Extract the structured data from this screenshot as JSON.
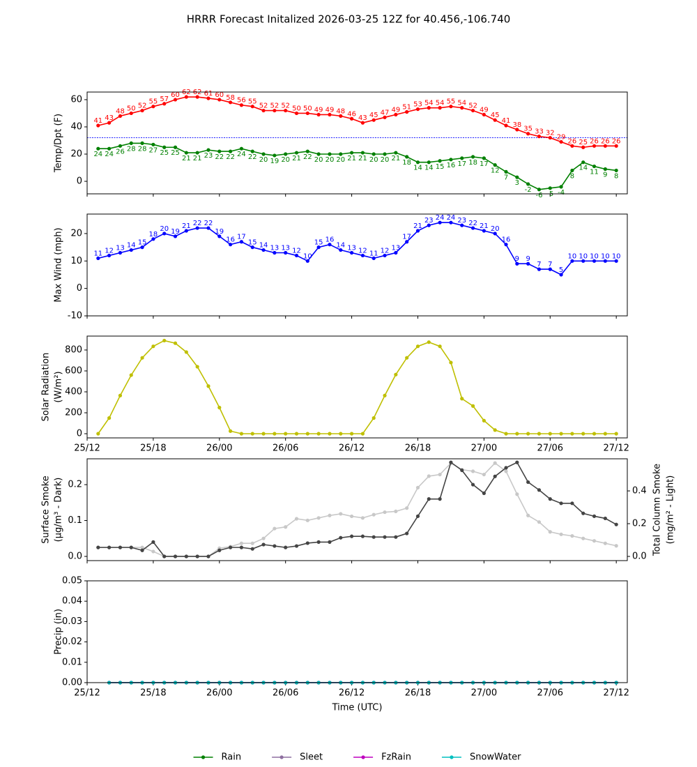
{
  "title": "HRRR Forecast Initalized 2026-03-25 12Z for 40.456,-106.740",
  "chart_data": [
    {
      "type": "line",
      "ylabel": [
        "Temp/Dpt (F)"
      ],
      "x": [
        1,
        2,
        3,
        4,
        5,
        6,
        7,
        8,
        9,
        10,
        11,
        12,
        13,
        14,
        15,
        16,
        17,
        18,
        19,
        20,
        21,
        22,
        23,
        24,
        25,
        26,
        27,
        28,
        29,
        30,
        31,
        32,
        33,
        34,
        35,
        36,
        37,
        38,
        39,
        40,
        41,
        42,
        43,
        44,
        45,
        46,
        47,
        48
      ],
      "xlim": [
        0,
        49
      ],
      "xticks": [
        0,
        6,
        12,
        18,
        24,
        30,
        36,
        42,
        48
      ],
      "ylim": [
        -9.2,
        65.6
      ],
      "yticks": [
        0,
        20,
        40,
        60
      ],
      "hline": 32,
      "hline_color": "#0000ff",
      "series": [
        {
          "color": "#ff0000",
          "data_labels": "above",
          "values": [
            41,
            43,
            48,
            50,
            52,
            55,
            57,
            60,
            62,
            62,
            61,
            60,
            58,
            56,
            55,
            52,
            52,
            52,
            50,
            50,
            49,
            49,
            48,
            46,
            43,
            45,
            47,
            49,
            51,
            53,
            54,
            54,
            55,
            54,
            52,
            49,
            45,
            41,
            38,
            35,
            33,
            32,
            29,
            26,
            25,
            26,
            26,
            26
          ]
        },
        {
          "color": "#008000",
          "data_labels": "below",
          "values": [
            24,
            24,
            26,
            28,
            28,
            27,
            25,
            25,
            21,
            21,
            23,
            22,
            22,
            24,
            22,
            20,
            19,
            20,
            21,
            22,
            20,
            20,
            20,
            21,
            21,
            20,
            20,
            21,
            18,
            14,
            14,
            15,
            16,
            17,
            18,
            17,
            12,
            7,
            3,
            -2,
            -6,
            -5,
            -4,
            8,
            14,
            11,
            9,
            8
          ]
        }
      ]
    },
    {
      "type": "line",
      "ylabel": [
        "Max Wind (mph)"
      ],
      "x": [
        1,
        2,
        3,
        4,
        5,
        6,
        7,
        8,
        9,
        10,
        11,
        12,
        13,
        14,
        15,
        16,
        17,
        18,
        19,
        20,
        21,
        22,
        23,
        24,
        25,
        26,
        27,
        28,
        29,
        30,
        31,
        32,
        33,
        34,
        35,
        36,
        37,
        38,
        39,
        40,
        41,
        42,
        43,
        44,
        45,
        46,
        47,
        48
      ],
      "xlim": [
        0,
        49
      ],
      "xticks": [
        0,
        6,
        12,
        18,
        24,
        30,
        36,
        42,
        48
      ],
      "ylim": [
        -10,
        27.1
      ],
      "yticks": [
        -10,
        0,
        10,
        20
      ],
      "series": [
        {
          "color": "#0000ff",
          "data_labels": "above",
          "values": [
            11,
            12,
            13,
            14,
            15,
            18,
            20,
            19,
            21,
            22,
            22,
            19,
            16,
            17,
            15,
            14,
            13,
            13,
            12,
            10,
            15,
            16,
            14,
            13,
            12,
            11,
            12,
            13,
            17,
            21,
            23,
            24,
            24,
            23,
            22,
            21,
            20,
            16,
            9,
            9,
            7,
            7,
            5,
            10,
            10,
            10,
            10,
            10
          ]
        }
      ]
    },
    {
      "type": "line",
      "ylabel": [
        "Solar Radiation",
        "(W/m²)"
      ],
      "x": [
        1,
        2,
        3,
        4,
        5,
        6,
        7,
        8,
        9,
        10,
        11,
        12,
        13,
        14,
        15,
        16,
        17,
        18,
        19,
        20,
        21,
        22,
        23,
        24,
        25,
        26,
        27,
        28,
        29,
        30,
        31,
        32,
        33,
        34,
        35,
        36,
        37,
        38,
        39,
        40,
        41,
        42,
        43,
        44,
        45,
        46,
        47,
        48
      ],
      "xlim": [
        0,
        49
      ],
      "xticks": [
        {
          "value": 0,
          "label": "25/12"
        },
        {
          "value": 6,
          "label": "25/18"
        },
        {
          "value": 12,
          "label": "26/00"
        },
        {
          "value": 18,
          "label": "26/06"
        },
        {
          "value": 24,
          "label": "26/12"
        },
        {
          "value": 30,
          "label": "26/18"
        },
        {
          "value": 36,
          "label": "27/00"
        },
        {
          "value": 42,
          "label": "27/06"
        },
        {
          "value": 48,
          "label": "27/12"
        }
      ],
      "ylim": [
        -40,
        933
      ],
      "yticks": [
        0,
        200,
        400,
        600,
        800
      ],
      "series": [
        {
          "color": "#bfbf00",
          "values": [
            0,
            150,
            365,
            560,
            725,
            835,
            890,
            865,
            780,
            640,
            455,
            250,
            25,
            0,
            0,
            0,
            0,
            0,
            0,
            0,
            0,
            0,
            0,
            0,
            0,
            150,
            365,
            565,
            725,
            835,
            875,
            835,
            680,
            335,
            265,
            125,
            35,
            0,
            0,
            0,
            0,
            0,
            0,
            0,
            0,
            0,
            0,
            0
          ]
        }
      ]
    },
    {
      "type": "line",
      "ylabel": [
        "Surface Smoke",
        "(μg/m³ - Dark)"
      ],
      "y2label": [
        "Total Column Smoke",
        "(mg/m² - Light)"
      ],
      "x": [
        1,
        2,
        3,
        4,
        5,
        6,
        7,
        8,
        9,
        10,
        11,
        12,
        13,
        14,
        15,
        16,
        17,
        18,
        19,
        20,
        21,
        22,
        23,
        24,
        25,
        26,
        27,
        28,
        29,
        30,
        31,
        32,
        33,
        34,
        35,
        36,
        37,
        38,
        39,
        40,
        41,
        42,
        43,
        44,
        45,
        46,
        47,
        48
      ],
      "xlim": [
        0,
        49
      ],
      "xticks": [
        0,
        6,
        12,
        18,
        24,
        30,
        36,
        42,
        48
      ],
      "ylim": [
        -0.0117,
        0.272
      ],
      "yticks": [
        {
          "value": 0,
          "label": "0.0"
        },
        {
          "value": 0.1,
          "label": "0.1"
        },
        {
          "value": 0.2,
          "label": "0.2"
        }
      ],
      "y2lim": [
        -0.0255,
        0.596
      ],
      "y2ticks": [
        {
          "value": 0,
          "label": "0.0"
        },
        {
          "value": 0.2,
          "label": "0.2"
        },
        {
          "value": 0.4,
          "label": "0.4"
        }
      ],
      "series": [
        {
          "color": "#c8c8c8",
          "axis": "y2",
          "values": [
            0.055,
            0.055,
            0.055,
            0.055,
            0.055,
            0.03,
            0,
            0,
            0,
            0,
            0,
            0.05,
            0.06,
            0.08,
            0.08,
            0.11,
            0.17,
            0.18,
            0.23,
            0.22,
            0.235,
            0.25,
            0.26,
            0.245,
            0.235,
            0.255,
            0.27,
            0.275,
            0.295,
            0.42,
            0.49,
            0.5,
            0.57,
            0.53,
            0.52,
            0.5,
            0.57,
            0.52,
            0.38,
            0.25,
            0.21,
            0.15,
            0.135,
            0.125,
            0.11,
            0.095,
            0.08,
            0.065
          ]
        },
        {
          "color": "#444444",
          "values": [
            0.025,
            0.025,
            0.025,
            0.025,
            0.017,
            0.04,
            0,
            0,
            0,
            0,
            0,
            0.017,
            0.025,
            0.025,
            0.021,
            0.033,
            0.029,
            0.025,
            0.029,
            0.037,
            0.04,
            0.04,
            0.052,
            0.056,
            0.056,
            0.054,
            0.054,
            0.054,
            0.064,
            0.112,
            0.16,
            0.16,
            0.262,
            0.24,
            0.2,
            0.176,
            0.223,
            0.247,
            0.262,
            0.207,
            0.185,
            0.16,
            0.148,
            0.148,
            0.12,
            0.112,
            0.106,
            0.089
          ]
        }
      ]
    },
    {
      "type": "line",
      "ylabel": [
        "Precip (in)"
      ],
      "xlabel": "Time (UTC)",
      "legend": "lower center",
      "x": [
        2,
        3,
        4,
        5,
        6,
        7,
        8,
        9,
        10,
        11,
        12,
        13,
        14,
        15,
        16,
        17,
        18,
        19,
        20,
        21,
        22,
        23,
        24,
        25,
        26,
        27,
        28,
        29,
        30,
        31,
        32,
        33,
        34,
        35,
        36,
        37,
        38,
        39,
        40,
        41,
        42,
        43,
        44,
        45,
        46,
        47,
        48
      ],
      "xlim": [
        0,
        49
      ],
      "xticks": [
        {
          "value": 0,
          "label": "25/12"
        },
        {
          "value": 6,
          "label": "25/18"
        },
        {
          "value": 12,
          "label": "26/00"
        },
        {
          "value": 18,
          "label": "26/06"
        },
        {
          "value": 24,
          "label": "26/12"
        },
        {
          "value": 30,
          "label": "26/18"
        },
        {
          "value": 36,
          "label": "27/00"
        },
        {
          "value": 42,
          "label": "27/06"
        },
        {
          "value": 48,
          "label": "27/12"
        }
      ],
      "ylim": [
        0,
        0.05
      ],
      "yticks": [
        {
          "value": 0,
          "label": "0.00"
        },
        {
          "value": 0.01,
          "label": "0.01"
        },
        {
          "value": 0.02,
          "label": "0.02"
        },
        {
          "value": 0.03,
          "label": "0.03"
        },
        {
          "value": 0.04,
          "label": "0.04"
        },
        {
          "value": 0.05,
          "label": "0.05"
        }
      ],
      "series": [
        {
          "name": "Rain",
          "color": "#008000",
          "values": [
            0,
            0,
            0,
            0,
            0,
            0,
            0,
            0,
            0,
            0,
            0,
            0,
            0,
            0,
            0,
            0,
            0,
            0,
            0,
            0,
            0,
            0,
            0,
            0,
            0,
            0,
            0,
            0,
            0,
            0,
            0,
            0,
            0,
            0,
            0,
            0,
            0,
            0,
            0,
            0,
            0,
            0,
            0,
            0,
            0,
            0,
            0
          ]
        },
        {
          "name": "Sleet",
          "color": "#8e6fa0",
          "values": [
            0,
            0,
            0,
            0,
            0,
            0,
            0,
            0,
            0,
            0,
            0,
            0,
            0,
            0,
            0,
            0,
            0,
            0,
            0,
            0,
            0,
            0,
            0,
            0,
            0,
            0,
            0,
            0,
            0,
            0,
            0,
            0,
            0,
            0,
            0,
            0,
            0,
            0,
            0,
            0,
            0,
            0,
            0,
            0,
            0,
            0,
            0
          ]
        },
        {
          "name": "FzRain",
          "color": "#bf00bf",
          "values": [
            0,
            0,
            0,
            0,
            0,
            0,
            0,
            0,
            0,
            0,
            0,
            0,
            0,
            0,
            0,
            0,
            0,
            0,
            0,
            0,
            0,
            0,
            0,
            0,
            0,
            0,
            0,
            0,
            0,
            0,
            0,
            0,
            0,
            0,
            0,
            0,
            0,
            0,
            0,
            0,
            0,
            0,
            0,
            0,
            0,
            0,
            0
          ]
        },
        {
          "name": "SnowWater",
          "color": "#00bfbf",
          "values": [
            0,
            0,
            0,
            0,
            0,
            0,
            0,
            0,
            0,
            0,
            0,
            0,
            0,
            0,
            0,
            0,
            0,
            0,
            0,
            0,
            0,
            0,
            0,
            0,
            0,
            0,
            0,
            0,
            0,
            0,
            0,
            0,
            0,
            0,
            0,
            0,
            0,
            0,
            0,
            0,
            0,
            0,
            0,
            0,
            0,
            0,
            0
          ]
        }
      ]
    }
  ]
}
